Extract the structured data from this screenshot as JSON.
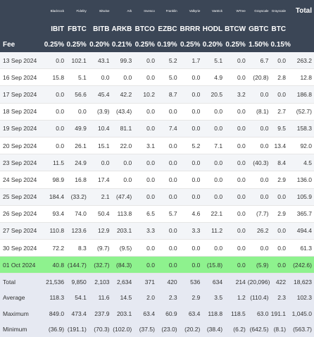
{
  "header": {
    "issuers": [
      "Blackrock",
      "Fidelity",
      "Bitwise",
      "Ark",
      "Invesco",
      "Franklin",
      "Valkyrie",
      "VanEck",
      "WTree",
      "Grayscale",
      "Grayscale",
      "Total"
    ],
    "tickers": [
      "IBIT",
      "FBTC",
      "BITB",
      "ARKB",
      "BTCO",
      "EZBC",
      "BRRR",
      "HODL",
      "BTCW",
      "GBTC",
      "BTC",
      ""
    ],
    "fee_label": "Fee",
    "fees": [
      "0.25%",
      "0.25%",
      "0.20%",
      "0.21%",
      "0.25%",
      "0.19%",
      "0.25%",
      "0.20%",
      "0.25%",
      "1.50%",
      "0.15%",
      ""
    ]
  },
  "rows": [
    {
      "date": "13 Sep 2024",
      "v": [
        "0.0",
        "102.1",
        "43.1",
        "99.3",
        "0.0",
        "5.2",
        "1.7",
        "5.1",
        "0.0",
        "6.7",
        "0.0",
        "263.2"
      ]
    },
    {
      "date": "16 Sep 2024",
      "v": [
        "15.8",
        "5.1",
        "0.0",
        "0.0",
        "0.0",
        "5.0",
        "0.0",
        "4.9",
        "0.0",
        "(20.8)",
        "2.8",
        "12.8"
      ]
    },
    {
      "date": "17 Sep 2024",
      "v": [
        "0.0",
        "56.6",
        "45.4",
        "42.2",
        "10.2",
        "8.7",
        "0.0",
        "20.5",
        "3.2",
        "0.0",
        "0.0",
        "186.8"
      ]
    },
    {
      "date": "18 Sep 2024",
      "v": [
        "0.0",
        "0.0",
        "(3.9)",
        "(43.4)",
        "0.0",
        "0.0",
        "0.0",
        "0.0",
        "0.0",
        "(8.1)",
        "2.7",
        "(52.7)"
      ]
    },
    {
      "date": "19 Sep 2024",
      "v": [
        "0.0",
        "49.9",
        "10.4",
        "81.1",
        "0.0",
        "7.4",
        "0.0",
        "0.0",
        "0.0",
        "0.0",
        "9.5",
        "158.3"
      ]
    },
    {
      "date": "20 Sep 2024",
      "v": [
        "0.0",
        "26.1",
        "15.1",
        "22.0",
        "3.1",
        "0.0",
        "5.2",
        "7.1",
        "0.0",
        "0.0",
        "13.4",
        "92.0"
      ]
    },
    {
      "date": "23 Sep 2024",
      "v": [
        "11.5",
        "24.9",
        "0.0",
        "0.0",
        "0.0",
        "0.0",
        "0.0",
        "0.0",
        "0.0",
        "(40.3)",
        "8.4",
        "4.5"
      ]
    },
    {
      "date": "24 Sep 2024",
      "v": [
        "98.9",
        "16.8",
        "17.4",
        "0.0",
        "0.0",
        "0.0",
        "0.0",
        "0.0",
        "0.0",
        "0.0",
        "2.9",
        "136.0"
      ]
    },
    {
      "date": "25 Sep 2024",
      "v": [
        "184.4",
        "(33.2)",
        "2.1",
        "(47.4)",
        "0.0",
        "0.0",
        "0.0",
        "0.0",
        "0.0",
        "0.0",
        "0.0",
        "105.9"
      ]
    },
    {
      "date": "26 Sep 2024",
      "v": [
        "93.4",
        "74.0",
        "50.4",
        "113.8",
        "6.5",
        "5.7",
        "4.6",
        "22.1",
        "0.0",
        "(7.7)",
        "2.9",
        "365.7"
      ]
    },
    {
      "date": "27 Sep 2024",
      "v": [
        "110.8",
        "123.6",
        "12.9",
        "203.1",
        "3.3",
        "0.0",
        "3.3",
        "11.2",
        "0.0",
        "26.2",
        "0.0",
        "494.4"
      ]
    },
    {
      "date": "30 Sep 2024",
      "v": [
        "72.2",
        "8.3",
        "(9.7)",
        "(9.5)",
        "0.0",
        "0.0",
        "0.0",
        "0.0",
        "0.0",
        "0.0",
        "0.0",
        "61.3"
      ]
    },
    {
      "date": "01 Oct 2024",
      "v": [
        "40.8",
        "(144.7)",
        "(32.7)",
        "(84.3)",
        "0.0",
        "0.0",
        "0.0",
        "(15.8)",
        "0.0",
        "(5.9)",
        "0.0",
        "(242.6)"
      ],
      "highlight": true
    }
  ],
  "stats": [
    {
      "label": "Total",
      "v": [
        "21,536",
        "9,850",
        "2,103",
        "2,634",
        "371",
        "420",
        "536",
        "634",
        "214",
        "(20,096)",
        "422",
        "18,623"
      ]
    },
    {
      "label": "Average",
      "v": [
        "118.3",
        "54.1",
        "11.6",
        "14.5",
        "2.0",
        "2.3",
        "2.9",
        "3.5",
        "1.2",
        "(110.4)",
        "2.3",
        "102.3"
      ]
    },
    {
      "label": "Maximum",
      "v": [
        "849.0",
        "473.4",
        "237.9",
        "203.1",
        "63.4",
        "60.9",
        "63.4",
        "118.8",
        "118.5",
        "63.0",
        "191.1",
        "1,045.0"
      ]
    },
    {
      "label": "Minimum",
      "v": [
        "(36.9)",
        "(191.1)",
        "(70.3)",
        "(102.0)",
        "(37.5)",
        "(23.0)",
        "(20.2)",
        "(38.4)",
        "(6.2)",
        "(642.5)",
        "(8.1)",
        "(563.7)"
      ]
    }
  ]
}
